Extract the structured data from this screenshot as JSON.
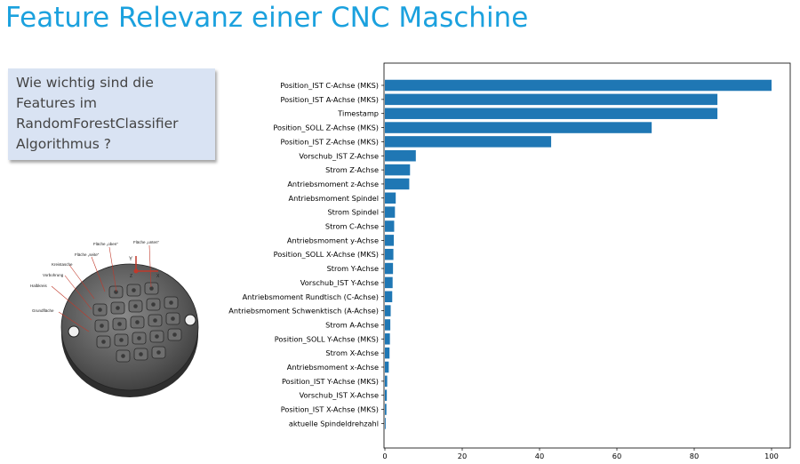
{
  "slide": {
    "title": "Feature Relevanz einer CNC Maschine",
    "question": "Wie wichtig sind die Features im RandomForestClassifier Algorithmus ?"
  },
  "figure": {
    "labels": {
      "flaeche_oben": "Fläche „oben“",
      "flaeche_unten": "Fläche „unten“",
      "flaeche_seite": "Fläche „seite“",
      "kreistasche": "Kreistasche",
      "vorbohrung": "Vorbohrung",
      "halbkreis": "Halbkreis",
      "grundflaeche": "Grundfläche",
      "axis_x": "X",
      "axis_y": "Y",
      "axis_z": "Z"
    }
  },
  "colors": {
    "title": "#1ba1de",
    "bar": "#1f77b4",
    "box": "#d9e3f3"
  },
  "chart_data": {
    "type": "bar",
    "orientation": "horizontal",
    "title": "",
    "xlabel": "",
    "ylabel": "",
    "xlim": [
      0,
      105
    ],
    "xticks": [
      0,
      20,
      40,
      60,
      80,
      100
    ],
    "grid": false,
    "categories": [
      "Position_IST C-Achse (MKS)",
      "Position_IST A-Achse (MKS)",
      "Timestamp",
      "Position_SOLL Z-Achse (MKS)",
      "Position_IST Z-Achse (MKS)",
      "Vorschub_IST Z-Achse",
      "Strom Z-Achse",
      "Antriebsmoment z-Achse",
      "Antriebsmoment Spindel",
      "Strom Spindel",
      "Strom C-Achse",
      "Antriebsmoment y-Achse",
      "Position_SOLL X-Achse (MKS)",
      "Strom Y-Achse",
      "Vorschub_IST Y-Achse",
      "Antriebsmoment Rundtisch (C-Achse)",
      "Antriebsmoment Schwenktisch (A-Achse)",
      "Strom A-Achse",
      "Position_SOLL Y-Achse (MKS)",
      "Strom X-Achse",
      "Antriebsmoment x-Achse",
      "Position_IST Y-Achse (MKS)",
      "Vorschub_IST X-Achse",
      "Position_IST X-Achse (MKS)",
      "aktuelle Spindeldrehzahl"
    ],
    "values": [
      100,
      86,
      86,
      69,
      43,
      8,
      6.5,
      6.3,
      2.8,
      2.6,
      2.4,
      2.3,
      2.2,
      2.1,
      2.0,
      1.9,
      1.5,
      1.4,
      1.3,
      1.2,
      1.0,
      0.6,
      0.5,
      0.4,
      0.2
    ]
  }
}
